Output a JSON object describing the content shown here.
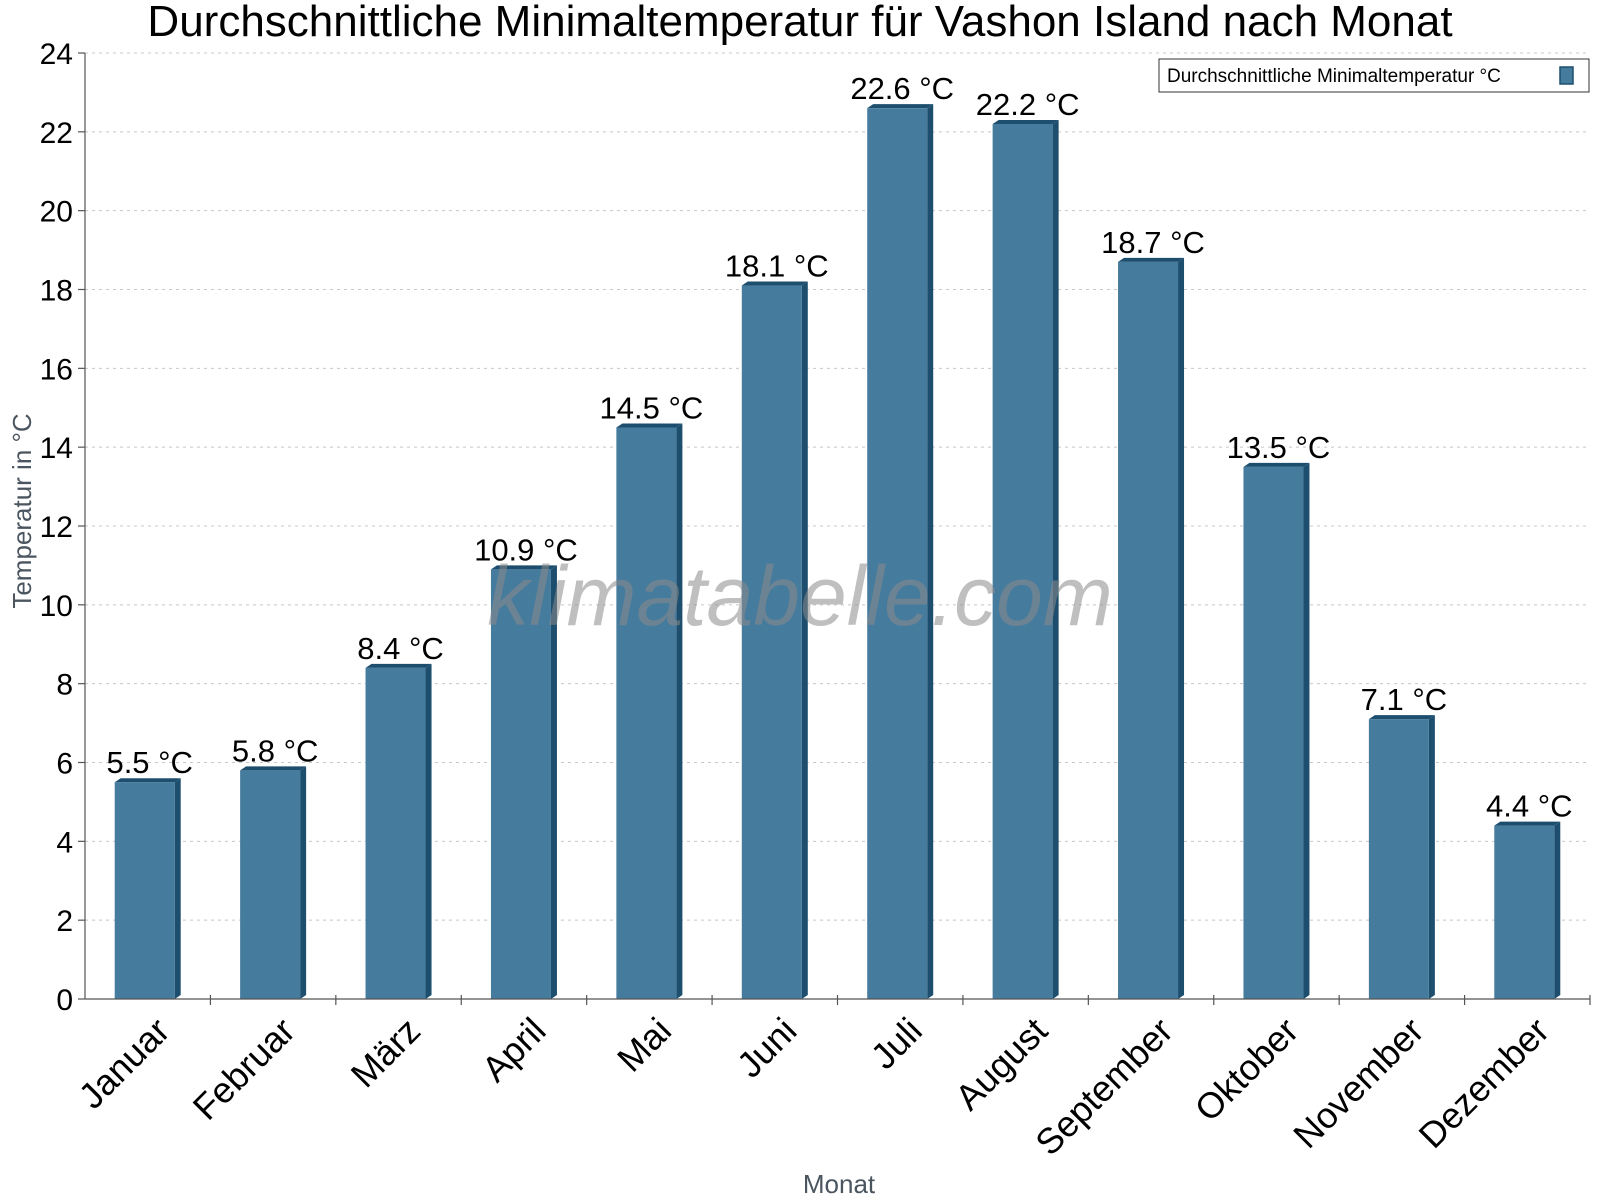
{
  "chart_data": {
    "type": "bar",
    "title": "Durchschnittliche Minimaltemperatur für Vashon Island nach Monat",
    "xlabel": "Monat",
    "ylabel": "Temperatur in °C",
    "ylim": [
      0,
      24
    ],
    "yticks": [
      "0",
      "2",
      "4",
      "6",
      "8",
      "10",
      "12",
      "14",
      "16",
      "18",
      "20",
      "22",
      "24"
    ],
    "grid": true,
    "legend_position": "top-right",
    "categories": [
      "Januar",
      "Februar",
      "März",
      "April",
      "Mai",
      "Juni",
      "Juli",
      "August",
      "September",
      "Oktober",
      "November",
      "Dezember"
    ],
    "series": [
      {
        "name": "Durchschnittliche Minimaltemperatur °C",
        "color": "#457b9d",
        "values": [
          5.5,
          5.8,
          8.4,
          10.9,
          14.5,
          18.1,
          22.6,
          22.2,
          18.7,
          13.5,
          7.1,
          4.4
        ],
        "labels": [
          "5.5 °C",
          "5.8 °C",
          "8.4 °C",
          "10.9 °C",
          "14.5 °C",
          "18.1 °C",
          "22.6 °C",
          "22.2 °C",
          "18.7 °C",
          "13.5 °C",
          "7.1 °C",
          "4.4 °C"
        ]
      }
    ],
    "bar_side_color": "#1d4e6e",
    "watermark": "klimatabelle.com"
  }
}
